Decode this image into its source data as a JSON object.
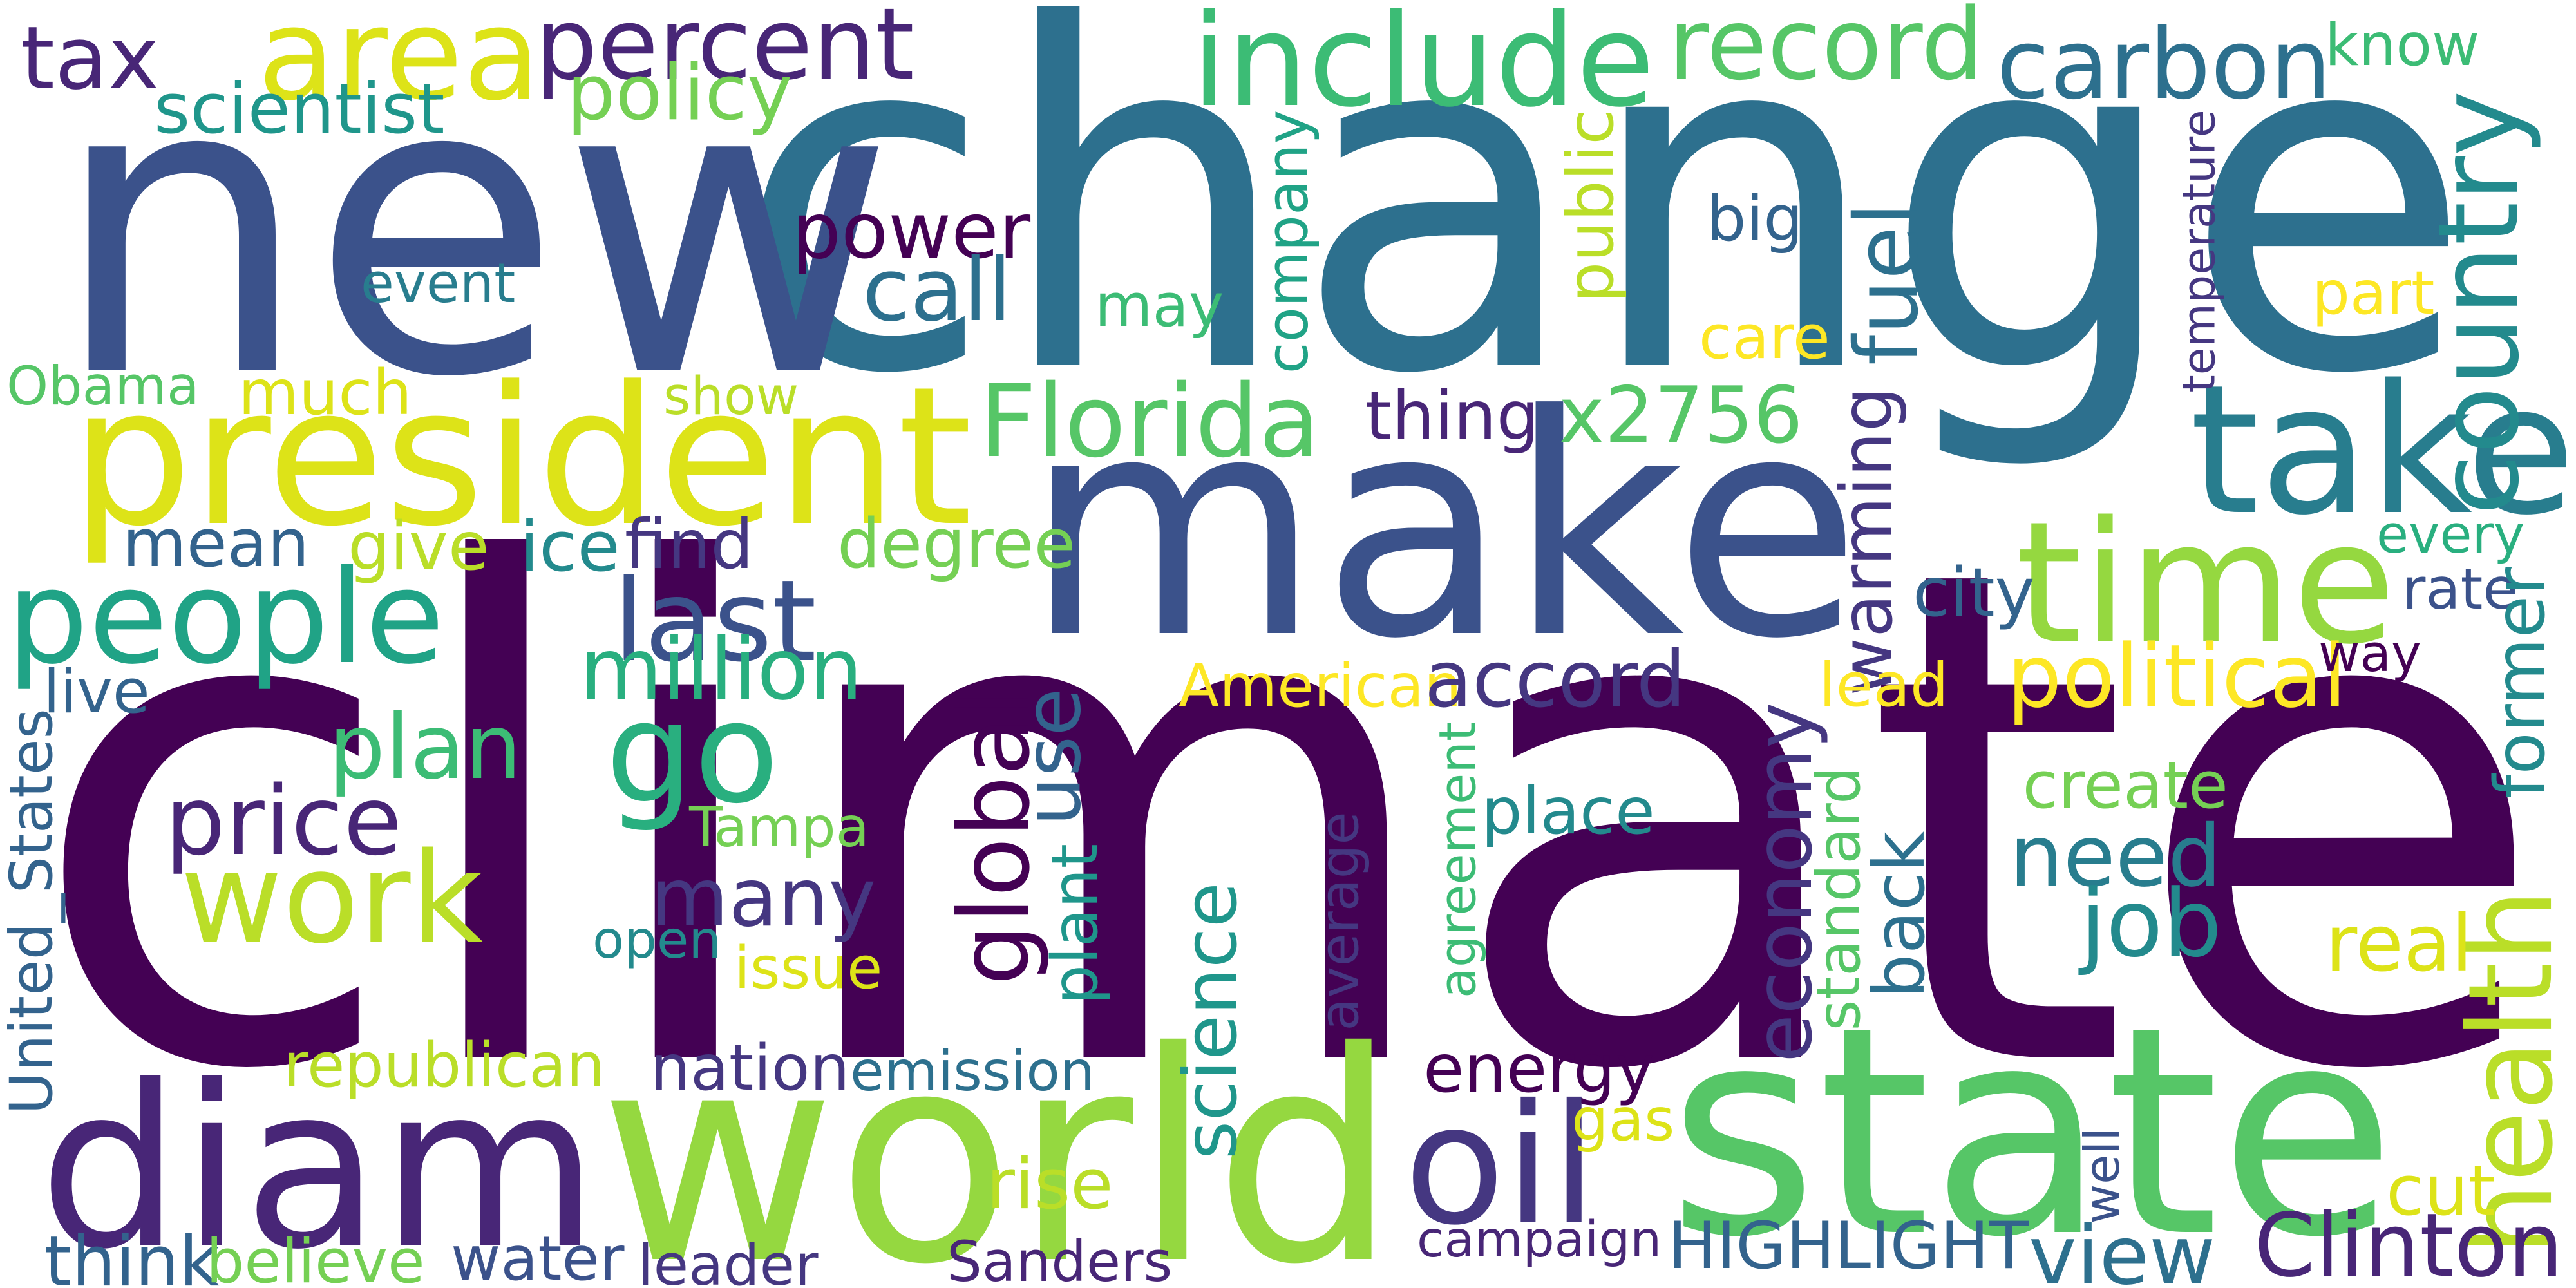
{
  "palette": {
    "dark_purple": "#440154",
    "indigo": "#482677",
    "violet_blue": "#453781",
    "slate_blue": "#3b528b",
    "blue": "#33638d",
    "steel_blue": "#2d708e",
    "teal_blue": "#287d8e",
    "teal": "#238a8d",
    "sea_green": "#1f968b",
    "emerald": "#20a386",
    "green": "#29af7f",
    "medium_green": "#3cbc75",
    "light_green": "#56c667",
    "lime_green": "#75d054",
    "yellow_green": "#95d840",
    "chartreuse": "#bade28",
    "lemon": "#dde318",
    "yellow": "#fde725"
  },
  "words": [
    {
      "text": "climate",
      "color": "#440154",
      "orientation": "horizontal"
    },
    {
      "text": "change",
      "color": "#2d708e",
      "orientation": "horizontal"
    },
    {
      "text": "new",
      "color": "#3b528b",
      "orientation": "horizontal"
    },
    {
      "text": "make",
      "color": "#3b528b",
      "orientation": "horizontal"
    },
    {
      "text": "world",
      "color": "#95d840",
      "orientation": "horizontal"
    },
    {
      "text": "state",
      "color": "#56c667",
      "orientation": "horizontal"
    },
    {
      "text": "diam",
      "color": "#482677",
      "orientation": "horizontal"
    },
    {
      "text": "president",
      "color": "#dde318",
      "orientation": "horizontal"
    },
    {
      "text": "take",
      "color": "#287d8e",
      "orientation": "horizontal"
    },
    {
      "text": "time",
      "color": "#95d840",
      "orientation": "horizontal"
    },
    {
      "text": "go",
      "color": "#29af7f",
      "orientation": "horizontal"
    },
    {
      "text": "people",
      "color": "#20a386",
      "orientation": "horizontal"
    },
    {
      "text": "include",
      "color": "#3cbc75",
      "orientation": "horizontal"
    },
    {
      "text": "area",
      "color": "#dde318",
      "orientation": "horizontal"
    },
    {
      "text": "percent",
      "color": "#482677",
      "orientation": "horizontal"
    },
    {
      "text": "work",
      "color": "#bade28",
      "orientation": "horizontal"
    },
    {
      "text": "record",
      "color": "#56c667",
      "orientation": "horizontal"
    },
    {
      "text": "carbon",
      "color": "#2d708e",
      "orientation": "horizontal"
    },
    {
      "text": "country",
      "color": "#238a8d",
      "orientation": "vertical"
    },
    {
      "text": "oil",
      "color": "#453781",
      "orientation": "horizontal"
    },
    {
      "text": "tax",
      "color": "#482677",
      "orientation": "horizontal"
    },
    {
      "text": "last",
      "color": "#3b528b",
      "orientation": "horizontal"
    },
    {
      "text": "power",
      "color": "#440154",
      "orientation": "horizontal"
    },
    {
      "text": "Florida",
      "color": "#56c667",
      "orientation": "horizontal"
    },
    {
      "text": "plan",
      "color": "#3cbc75",
      "orientation": "horizontal"
    },
    {
      "text": "price",
      "color": "#482677",
      "orientation": "horizontal"
    },
    {
      "text": "many",
      "color": "#453781",
      "orientation": "horizontal"
    },
    {
      "text": "need",
      "color": "#287d8e",
      "orientation": "horizontal"
    },
    {
      "text": "health",
      "color": "#bade28",
      "orientation": "vertical"
    },
    {
      "text": "x2756",
      "color": "#56c667",
      "orientation": "horizontal"
    },
    {
      "text": "global",
      "color": "#440154",
      "orientation": "vertical"
    },
    {
      "text": "science",
      "color": "#1f968b",
      "orientation": "vertical"
    },
    {
      "text": "economy",
      "color": "#453781",
      "orientation": "vertical"
    },
    {
      "text": "use",
      "color": "#33638d",
      "orientation": "vertical"
    },
    {
      "text": "call",
      "color": "#2d708e",
      "orientation": "horizontal"
    },
    {
      "text": "energy",
      "color": "#440154",
      "orientation": "horizontal"
    },
    {
      "text": "HIGHLIGHT",
      "color": "#33638d",
      "orientation": "horizontal"
    },
    {
      "text": "Clinton",
      "color": "#482677",
      "orientation": "horizontal"
    },
    {
      "text": "political",
      "color": "#fde725",
      "orientation": "horizontal"
    },
    {
      "text": "American",
      "color": "#fde725",
      "orientation": "horizontal"
    },
    {
      "text": "million",
      "color": "#29af7f",
      "orientation": "horizontal"
    },
    {
      "text": "warming",
      "color": "#453781",
      "orientation": "vertical"
    },
    {
      "text": "back",
      "color": "#2d708e",
      "orientation": "vertical"
    },
    {
      "text": "job",
      "color": "#238a8d",
      "orientation": "horizontal"
    },
    {
      "text": "way",
      "color": "#440154",
      "orientation": "horizontal"
    },
    {
      "text": "fuel",
      "color": "#2d708e",
      "orientation": "vertical"
    },
    {
      "text": "real",
      "color": "#dde318",
      "orientation": "horizontal"
    },
    {
      "text": "Tampa",
      "color": "#75d054",
      "orientation": "horizontal"
    },
    {
      "text": "may",
      "color": "#3cbc75",
      "orientation": "horizontal"
    },
    {
      "text": "know",
      "color": "#3cbc75",
      "orientation": "horizontal"
    },
    {
      "text": "accord",
      "color": "#453781",
      "orientation": "horizontal"
    },
    {
      "text": "company",
      "color": "#20a386",
      "orientation": "vertical"
    },
    {
      "text": "scientist",
      "color": "#1f968b",
      "orientation": "horizontal"
    },
    {
      "text": "policy",
      "color": "#75d054",
      "orientation": "horizontal"
    },
    {
      "text": "republican",
      "color": "#bade28",
      "orientation": "horizontal"
    },
    {
      "text": "emission",
      "color": "#2d708e",
      "orientation": "horizontal"
    },
    {
      "text": "nation",
      "color": "#453781",
      "orientation": "horizontal"
    },
    {
      "text": "campaign",
      "color": "#482677",
      "orientation": "horizontal"
    },
    {
      "text": "Sanders",
      "color": "#482677",
      "orientation": "horizontal"
    },
    {
      "text": "water",
      "color": "#3b528b",
      "orientation": "horizontal"
    },
    {
      "text": "leader",
      "color": "#453781",
      "orientation": "horizontal"
    },
    {
      "text": "think",
      "color": "#33638d",
      "orientation": "horizontal"
    },
    {
      "text": "believe",
      "color": "#75d054",
      "orientation": "horizontal"
    },
    {
      "text": "view",
      "color": "#2d708e",
      "orientation": "horizontal"
    },
    {
      "text": "Obama",
      "color": "#56c667",
      "orientation": "horizontal"
    },
    {
      "text": "much",
      "color": "#dde318",
      "orientation": "horizontal"
    },
    {
      "text": "event",
      "color": "#287d8e",
      "orientation": "horizontal"
    },
    {
      "text": "mean",
      "color": "#33638d",
      "orientation": "horizontal"
    },
    {
      "text": "give",
      "color": "#bade28",
      "orientation": "horizontal"
    },
    {
      "text": "ice",
      "color": "#238a8d",
      "orientation": "horizontal"
    },
    {
      "text": "find",
      "color": "#453781",
      "orientation": "horizontal"
    },
    {
      "text": "degree",
      "color": "#75d054",
      "orientation": "horizontal"
    },
    {
      "text": "show",
      "color": "#bade28",
      "orientation": "horizontal"
    },
    {
      "text": "thing",
      "color": "#482677",
      "orientation": "horizontal"
    },
    {
      "text": "live",
      "color": "#33638d",
      "orientation": "horizontal"
    },
    {
      "text": "open",
      "color": "#238a8d",
      "orientation": "horizontal"
    },
    {
      "text": "issue",
      "color": "#dde318",
      "orientation": "horizontal"
    },
    {
      "text": "place",
      "color": "#238a8d",
      "orientation": "horizontal"
    },
    {
      "text": "create",
      "color": "#75d054",
      "orientation": "horizontal"
    },
    {
      "text": "lead",
      "color": "#fde725",
      "orientation": "horizontal"
    },
    {
      "text": "city",
      "color": "#33638d",
      "orientation": "horizontal"
    },
    {
      "text": "big",
      "color": "#33638d",
      "orientation": "horizontal"
    },
    {
      "text": "care",
      "color": "#fde725",
      "orientation": "horizontal"
    },
    {
      "text": "part",
      "color": "#fde725",
      "orientation": "horizontal"
    },
    {
      "text": "every",
      "color": "#29af7f",
      "orientation": "horizontal"
    },
    {
      "text": "rate",
      "color": "#3b528b",
      "orientation": "horizontal"
    },
    {
      "text": "former",
      "color": "#238a8d",
      "orientation": "vertical"
    },
    {
      "text": "temperature",
      "color": "#453781",
      "orientation": "vertical"
    },
    {
      "text": "public",
      "color": "#bade28",
      "orientation": "vertical"
    },
    {
      "text": "agreement",
      "color": "#3cbc75",
      "orientation": "vertical"
    },
    {
      "text": "standard",
      "color": "#56c667",
      "orientation": "vertical"
    },
    {
      "text": "average",
      "color": "#453781",
      "orientation": "vertical"
    },
    {
      "text": "plant",
      "color": "#1f968b",
      "orientation": "vertical"
    },
    {
      "text": "United_States",
      "color": "#33638d",
      "orientation": "vertical"
    },
    {
      "text": "rise",
      "color": "#bade28",
      "orientation": "horizontal"
    },
    {
      "text": "gas",
      "color": "#dde318",
      "orientation": "horizontal"
    },
    {
      "text": "well",
      "color": "#3b528b",
      "orientation": "vertical"
    },
    {
      "text": "cut",
      "color": "#dde318",
      "orientation": "horizontal"
    }
  ]
}
